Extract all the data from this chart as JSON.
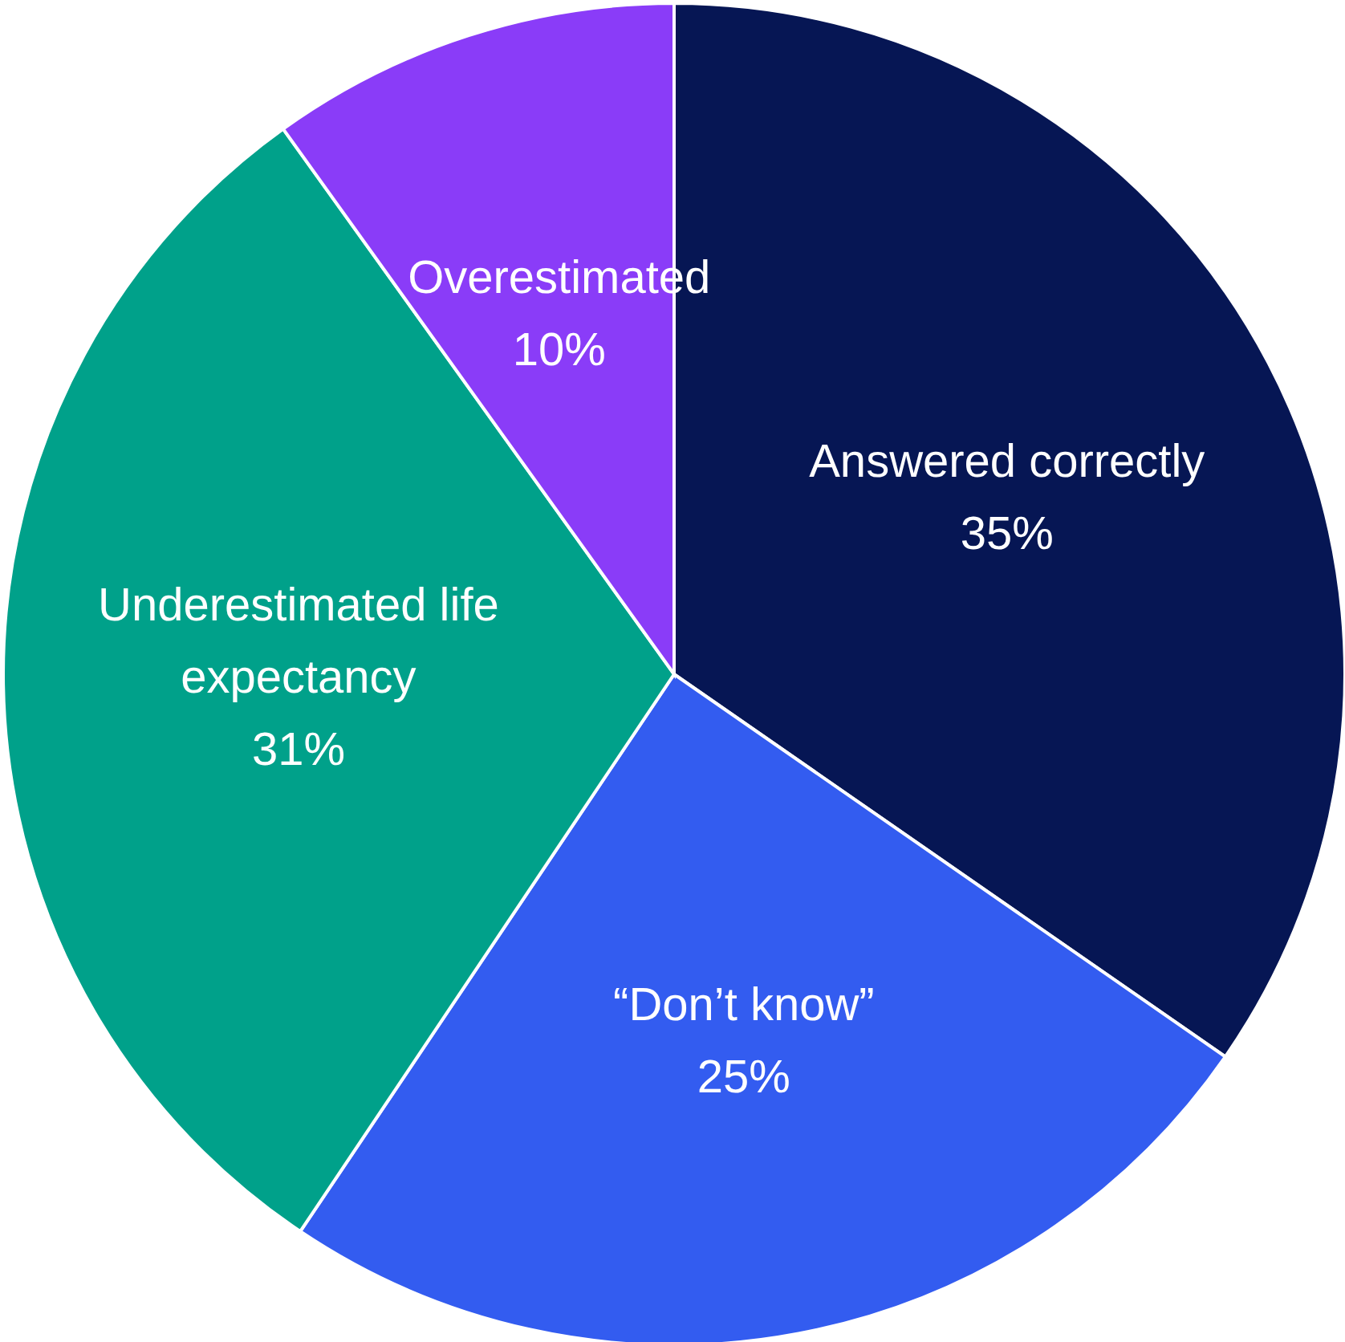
{
  "chart_data": {
    "type": "pie",
    "categories": [
      "Answered correctly",
      "“Don’t know”",
      "Underestimated life expectancy",
      "Overestimated"
    ],
    "values": [
      35,
      25,
      31,
      10
    ],
    "colors": [
      "#061654",
      "#335cf0",
      "#00a18a",
      "#8a3cf8"
    ],
    "value_labels": [
      "35%",
      "25%",
      "31%",
      "10%"
    ]
  }
}
